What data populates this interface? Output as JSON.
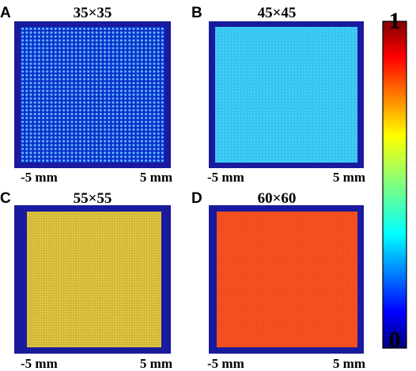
{
  "panels": [
    {
      "letter": "A",
      "title": "35×35",
      "grid": 35,
      "dot_color": "#5fb3ff",
      "fill_color": null,
      "x_left": "-5 mm",
      "x_right": "5 mm"
    },
    {
      "letter": "B",
      "title": "45×45",
      "grid": 45,
      "dot_color": "#41d3ff",
      "fill_color": "#3ac2ee",
      "x_left": "-5 mm",
      "x_right": "5 mm"
    },
    {
      "letter": "C",
      "title": "55×55",
      "grid": 55,
      "dot_color": "#e8d640",
      "fill_color": "#cfb23a",
      "x_left": "-5 mm",
      "x_right": "5 mm"
    },
    {
      "letter": "D",
      "title": "60×60",
      "grid": 60,
      "dot_color": "#ff5a24",
      "fill_color": "#ef4a1e",
      "x_left": "-5 mm",
      "x_right": "5 mm"
    }
  ],
  "colorbar": {
    "max_label": "1",
    "min_label": "0",
    "colormap": "jet"
  },
  "colors": {
    "frame": "#1a1a9e",
    "panel_bg": "#0a30c8"
  }
}
